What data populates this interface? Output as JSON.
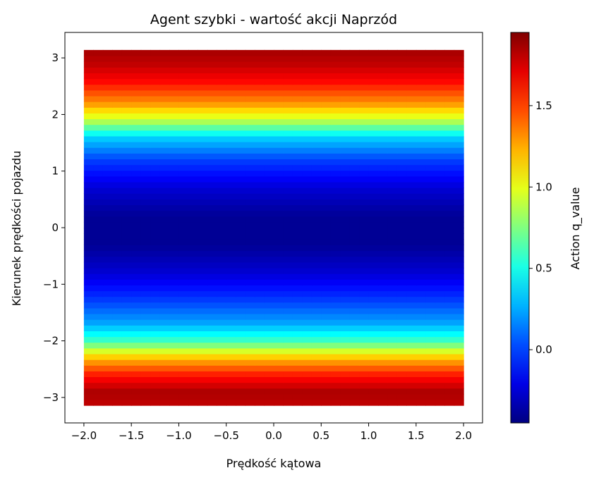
{
  "chart_data": {
    "type": "heatmap",
    "title": "Agent szybki - wartość akcji Naprzód",
    "xlabel": "Prędkość kątowa",
    "ylabel": "Kierunek prędkości pojazdu",
    "xlim": [
      -2.2,
      2.2
    ],
    "ylim": [
      -3.45,
      3.45
    ],
    "x_ticks": [
      -2.0,
      -1.5,
      -1.0,
      -0.5,
      0.0,
      0.5,
      1.0,
      1.5,
      2.0
    ],
    "x_tick_labels": [
      "−2.0",
      "−1.5",
      "−1.0",
      "−0.5",
      "0.0",
      "0.5",
      "1.0",
      "1.5",
      "2.0"
    ],
    "y_ticks": [
      -3,
      -2,
      -1,
      0,
      1,
      2,
      3
    ],
    "y_tick_labels": [
      "−3",
      "−2",
      "−1",
      "0",
      "1",
      "2",
      "3"
    ],
    "data_extent": {
      "x": [
        -2.0,
        2.0
      ],
      "y": [
        -3.14,
        3.14
      ]
    },
    "colormap": "jet",
    "colorbar": {
      "label": "Action q_value",
      "range": [
        -0.45,
        1.95
      ],
      "ticks": [
        0.0,
        0.5,
        1.0,
        1.5
      ],
      "tick_labels": [
        "0.0",
        "0.5",
        "1.0",
        "1.5"
      ]
    },
    "value_profile_by_y": [
      {
        "y": -3.1,
        "value": 1.8
      },
      {
        "y": -2.9,
        "value": 1.85
      },
      {
        "y": -2.6,
        "value": 1.6
      },
      {
        "y": -2.3,
        "value": 1.2
      },
      {
        "y": -2.0,
        "value": 0.6
      },
      {
        "y": -1.7,
        "value": 0.25
      },
      {
        "y": -1.3,
        "value": 0.0
      },
      {
        "y": -0.8,
        "value": -0.25
      },
      {
        "y": -0.3,
        "value": -0.4
      },
      {
        "y": 0.2,
        "value": -0.4
      },
      {
        "y": 0.7,
        "value": -0.25
      },
      {
        "y": 1.2,
        "value": 0.0
      },
      {
        "y": 1.6,
        "value": 0.35
      },
      {
        "y": 1.9,
        "value": 0.9
      },
      {
        "y": 2.2,
        "value": 1.3
      },
      {
        "y": 2.6,
        "value": 1.65
      },
      {
        "y": 2.9,
        "value": 1.8
      },
      {
        "y": 3.1,
        "value": 1.85
      }
    ]
  }
}
